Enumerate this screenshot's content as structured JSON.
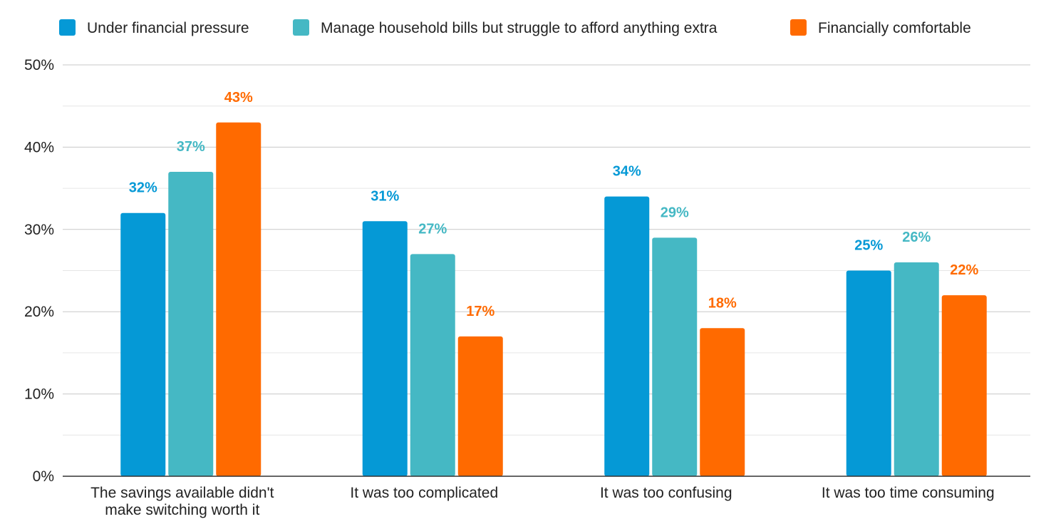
{
  "chart_data": {
    "type": "bar",
    "title": "",
    "xlabel": "",
    "ylabel": "",
    "ylim": [
      0,
      50
    ],
    "y_ticks": [
      "0%",
      "10%",
      "20%",
      "30%",
      "40%",
      "50%"
    ],
    "y_tick_values": [
      0,
      10,
      20,
      30,
      40,
      50
    ],
    "grid": true,
    "legend_position": "top",
    "categories": [
      [
        "The savings available didn't",
        "make switching worth it"
      ],
      [
        "It was too complicated"
      ],
      [
        "It was too confusing"
      ],
      [
        "It was too time consuming"
      ]
    ],
    "series": [
      {
        "name": "Under financial pressure",
        "color": "#0599D6",
        "values": [
          32,
          31,
          34,
          25
        ],
        "labels": [
          "32%",
          "31%",
          "34%",
          "25%"
        ]
      },
      {
        "name": "Manage household bills but struggle to afford anything extra",
        "color": "#45B8C4",
        "values": [
          37,
          27,
          29,
          26
        ],
        "labels": [
          "37%",
          "27%",
          "29%",
          "26%"
        ]
      },
      {
        "name": "Financially comfortable",
        "color": "#FF6A00",
        "values": [
          43,
          17,
          18,
          22
        ],
        "labels": [
          "43%",
          "17%",
          "18%",
          "22%"
        ]
      }
    ]
  }
}
